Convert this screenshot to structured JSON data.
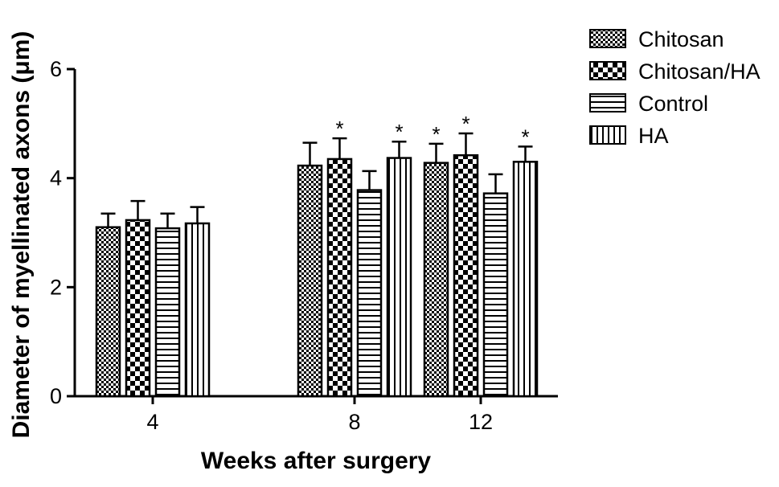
{
  "chart_data": {
    "type": "bar",
    "title": "",
    "xlabel": "Weeks after surgery",
    "ylabel": "Diameter of myellinated axons (μm)",
    "categories": [
      "4",
      "8",
      "12"
    ],
    "ylim": [
      0,
      6
    ],
    "yticks": [
      "0",
      "2",
      "4",
      "6"
    ],
    "series": [
      {
        "name": "Chitosan",
        "pattern": "checker-small",
        "values": [
          3.1,
          4.23,
          4.28
        ],
        "errors": [
          0.25,
          0.42,
          0.35
        ],
        "significant": [
          false,
          false,
          true
        ]
      },
      {
        "name": "Chitosan/HA",
        "pattern": "checker-large",
        "values": [
          3.23,
          4.35,
          4.42
        ],
        "errors": [
          0.35,
          0.38,
          0.4
        ],
        "significant": [
          false,
          true,
          true
        ]
      },
      {
        "name": "Control",
        "pattern": "horizontal-stripes",
        "values": [
          3.08,
          3.78,
          3.72
        ],
        "errors": [
          0.27,
          0.35,
          0.35
        ],
        "significant": [
          false,
          false,
          false
        ]
      },
      {
        "name": "HA",
        "pattern": "vertical-stripes",
        "values": [
          3.17,
          4.37,
          4.3
        ],
        "errors": [
          0.3,
          0.3,
          0.28
        ],
        "significant": [
          false,
          true,
          true
        ]
      }
    ],
    "significance_marker": "*",
    "legend_position": "top-right",
    "grid": false,
    "colors": {
      "bar_stroke": "#000000",
      "bar_fill": "#ffffff",
      "pattern": "#000000"
    }
  }
}
